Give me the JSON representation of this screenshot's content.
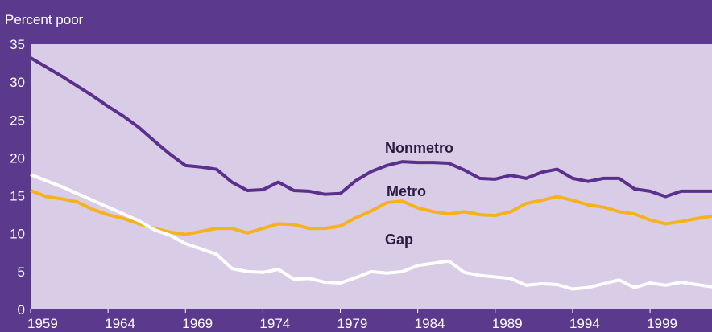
{
  "chart_data": {
    "type": "line",
    "ylabel": "Percent poor",
    "x": [
      1959,
      1960,
      1961,
      1962,
      1963,
      1964,
      1965,
      1966,
      1967,
      1968,
      1969,
      1970,
      1971,
      1972,
      1973,
      1974,
      1975,
      1976,
      1977,
      1978,
      1979,
      1980,
      1981,
      1982,
      1983,
      1984,
      1985,
      1986,
      1987,
      1988,
      1989,
      1990,
      1991,
      1992,
      1993,
      1994,
      1995,
      1996,
      1997,
      1998,
      1999,
      2000,
      2001,
      2002,
      2003
    ],
    "series": [
      {
        "name": "Nonmetro",
        "color": "#5b2f8c",
        "values": [
          33.2,
          32.0,
          30.8,
          29.5,
          28.2,
          26.8,
          25.5,
          24.0,
          22.2,
          20.5,
          19.0,
          18.8,
          18.5,
          16.8,
          15.7,
          15.8,
          16.8,
          15.7,
          15.6,
          15.2,
          15.3,
          17.0,
          18.2,
          19.0,
          19.5,
          19.4,
          19.4,
          19.3,
          18.4,
          17.3,
          17.2,
          17.7,
          17.3,
          18.1,
          18.5,
          17.3,
          16.9,
          17.3,
          17.3,
          15.9,
          15.6,
          14.9,
          15.6,
          15.6,
          15.6
        ]
      },
      {
        "name": "Metro",
        "color": "#f6b21c",
        "values": [
          15.7,
          14.9,
          14.6,
          14.2,
          13.2,
          12.5,
          12.0,
          11.3,
          10.7,
          10.2,
          9.9,
          10.3,
          10.7,
          10.7,
          10.1,
          10.7,
          11.3,
          11.2,
          10.7,
          10.7,
          11.0,
          12.1,
          13.0,
          14.1,
          14.3,
          13.4,
          12.9,
          12.6,
          12.9,
          12.5,
          12.4,
          12.9,
          14.0,
          14.4,
          14.9,
          14.4,
          13.8,
          13.5,
          12.9,
          12.6,
          11.8,
          11.3,
          11.6,
          12.0,
          12.3
        ]
      },
      {
        "name": "Gap",
        "color": "#ffffff",
        "values": [
          17.8,
          17.0,
          16.2,
          15.3,
          14.4,
          13.5,
          12.6,
          11.7,
          10.5,
          9.8,
          8.7,
          8.0,
          7.3,
          5.4,
          5.0,
          4.9,
          5.3,
          4.0,
          4.1,
          3.6,
          3.5,
          4.2,
          5.0,
          4.8,
          5.0,
          5.8,
          6.1,
          6.4,
          4.9,
          4.5,
          4.3,
          4.1,
          3.2,
          3.4,
          3.3,
          2.7,
          2.9,
          3.4,
          3.9,
          2.9,
          3.5,
          3.2,
          3.6,
          3.3,
          3.0
        ]
      }
    ],
    "xlim": [
      1959,
      2003
    ],
    "xticks": [
      1959,
      1964,
      1969,
      1974,
      1979,
      1984,
      1989,
      1994,
      1999
    ],
    "ylim": [
      0,
      35
    ],
    "yticks": [
      0,
      5,
      10,
      15,
      20,
      25,
      30,
      35
    ]
  }
}
